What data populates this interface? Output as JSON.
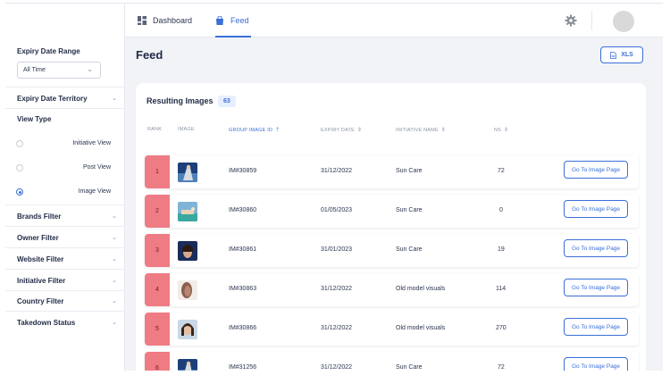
{
  "nav": {
    "tabs": [
      {
        "label": "Dashboard",
        "icon": "dashboard-grid-icon"
      },
      {
        "label": "Feed",
        "icon": "shopping-bag-icon",
        "active": true
      }
    ],
    "settings_icon": "gear-icon"
  },
  "sidebar": {
    "expiry_date_range": {
      "label": "Expiry Date Range",
      "select_value": "All Time"
    },
    "expiry_date_territory": "Expiry Date Territory",
    "view_type": {
      "label": "View Type",
      "options": [
        {
          "label": "Initiative View",
          "selected": false
        },
        {
          "label": "Post View",
          "selected": false
        },
        {
          "label": "Image View",
          "selected": true
        }
      ]
    },
    "filters": [
      "Brands Filter",
      "Owner Filter",
      "Website Filter",
      "Initiative Filter",
      "Country Filter",
      "Takedown Status"
    ]
  },
  "page": {
    "title": "Feed",
    "export_label": "XLS"
  },
  "results": {
    "title": "Resulting Images",
    "count": "63",
    "columns": [
      "RANK",
      "IMAGE",
      "GROUP IMAGE ID",
      "EXPIRY DATE",
      "INITIATIVE NAME",
      "NS"
    ],
    "action_label": "Go To Image Page",
    "rows": [
      {
        "rank": "1",
        "id": "IM#30859",
        "expiry": "31/12/2022",
        "initiative": "Sun Care",
        "ns": "72"
      },
      {
        "rank": "2",
        "id": "IM#30860",
        "expiry": "01/05/2023",
        "initiative": "Sun Care",
        "ns": "0"
      },
      {
        "rank": "3",
        "id": "IM#30861",
        "expiry": "31/01/2023",
        "initiative": "Sun Care",
        "ns": "19"
      },
      {
        "rank": "4",
        "id": "IM#30863",
        "expiry": "31/12/2022",
        "initiative": "Old model visuals",
        "ns": "114"
      },
      {
        "rank": "5",
        "id": "IM#30866",
        "expiry": "31/12/2022",
        "initiative": "Old model visuals",
        "ns": "270"
      },
      {
        "rank": "6",
        "id": "IM#31256",
        "expiry": "31/12/2022",
        "initiative": "Sun Care",
        "ns": "72"
      }
    ]
  },
  "colors": {
    "accent": "#3b6fd8",
    "rank_fill": "#ef7b84",
    "background": "#f1f3f7"
  }
}
